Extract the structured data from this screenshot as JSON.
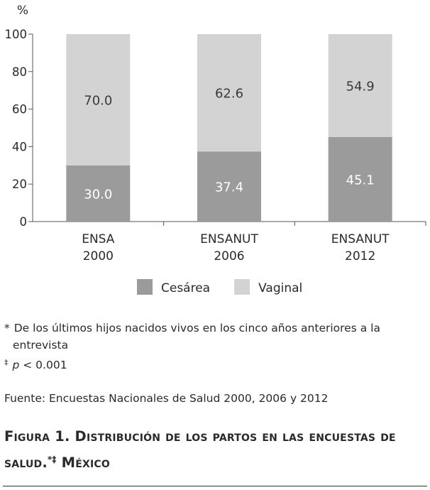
{
  "chart_data": {
    "type": "bar",
    "stacked": true,
    "y_unit_label": "%",
    "ylim": [
      0,
      100
    ],
    "yticks": [
      0,
      20,
      40,
      60,
      80,
      100
    ],
    "categories": [
      {
        "line1": "ENSA",
        "line2": "2000"
      },
      {
        "line1": "ENSANUT",
        "line2": "2006"
      },
      {
        "line1": "ENSANUT",
        "line2": "2012"
      }
    ],
    "series": [
      {
        "name": "Cesárea",
        "values": [
          30.0,
          37.4,
          45.1
        ],
        "labels": [
          "30.0",
          "37.4",
          "45.1"
        ],
        "color": "#9b9b9b",
        "label_color": "#ffffff"
      },
      {
        "name": "Vaginal",
        "values": [
          70.0,
          62.6,
          54.9
        ],
        "labels": [
          "70.0",
          "62.6",
          "54.9"
        ],
        "color": "#d3d3d3",
        "label_color": "#3a3a3a"
      }
    ],
    "legend_position": "bottom-center"
  },
  "notes": {
    "note1_mark": "*",
    "note1_text": "De los últimos hijos nacidos vivos en los cinco años anteriores a la",
    "note1_cont": "entrevista",
    "note2_mark": "‡",
    "note2_var": "p",
    "note2_text": " < 0.001"
  },
  "source": "Fuente: Encuestas Nacionales de Salud 2000, 2006 y 2012",
  "figure_title": {
    "prefix": "Figura 1. Distribución de los partos en las encuestas de salud.",
    "marks": "*‡",
    "suffix": " México"
  }
}
